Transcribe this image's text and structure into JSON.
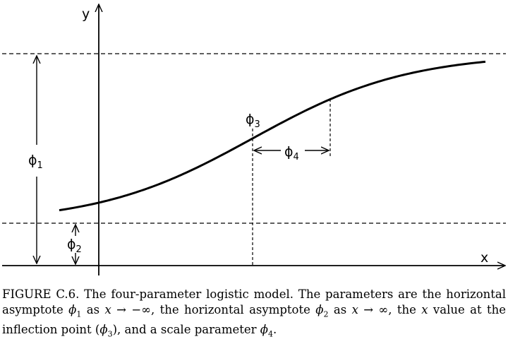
{
  "diagram": {
    "y_axis_label": "y",
    "x_axis_label": "x",
    "phi1": {
      "symbol": "ϕ",
      "sub": "1"
    },
    "phi2": {
      "symbol": "ϕ",
      "sub": "2"
    },
    "phi3": {
      "symbol": "ϕ",
      "sub": "3"
    },
    "phi4": {
      "symbol": "ϕ",
      "sub": "4"
    }
  },
  "caption": {
    "fig_label": "FIGURE C.6.",
    "s1": " The four-parameter logistic model. The parameters are the horizontal asymptote ",
    "phi": "ϕ",
    "sub1": "1",
    "s2": " as ",
    "x": "x",
    "neg_inf": " → −∞",
    "s3": ", the horizontal asymptote ",
    "sub2": "2",
    "s4": " as ",
    "pos_inf": " → ∞",
    "s5": ", the ",
    "s6": " value at the inflection point (",
    "sub3": "3",
    "s7": "), and a scale parameter ",
    "sub4": "4",
    "s8": "."
  }
}
